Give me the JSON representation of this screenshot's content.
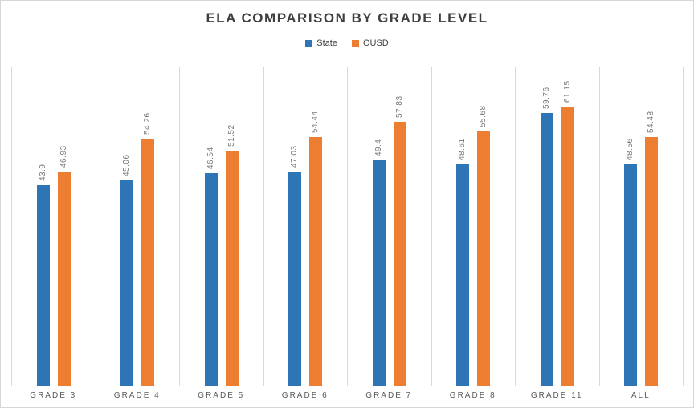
{
  "chart_data": {
    "type": "bar",
    "title": "ELA COMPARISON BY GRADE LEVEL",
    "categories": [
      "GRADE 3",
      "GRADE 4",
      "GRADE 5",
      "GRADE 6",
      "GRADE 7",
      "GRADE 8",
      "GRADE 11",
      "ALL"
    ],
    "series": [
      {
        "name": "State",
        "color": "#2E75B6",
        "values": [
          43.9,
          45.06,
          46.54,
          47.03,
          49.4,
          48.61,
          59.76,
          48.56
        ]
      },
      {
        "name": "OUSD",
        "color": "#ED7D31",
        "values": [
          46.93,
          54.26,
          51.52,
          54.44,
          57.83,
          55.68,
          61.15,
          54.48
        ]
      }
    ],
    "data_labels": [
      "43.9",
      "45.06",
      "46.54",
      "47.03",
      "49.4",
      "48.61",
      "59.76",
      "48.56",
      "46.93",
      "54.26",
      "51.52",
      "54.44",
      "57.83",
      "55.68",
      "61.15",
      "54.48"
    ],
    "ylim": [
      0,
      70
    ],
    "xlabel": "",
    "ylabel": "",
    "legend_position": "top",
    "grid": "vertical category separators only",
    "data_label_style": "rotated 90deg above bar, gray",
    "colors": {
      "state_blue": "#2E75B6",
      "ousd_orange": "#ED7D31",
      "title_text": "#3f3f3f",
      "axis_label_text": "#595959",
      "data_label_text": "#767676",
      "gridline": "#d9d9d9",
      "axis_line": "#bfbfbf",
      "border": "#d6d6d6"
    }
  }
}
